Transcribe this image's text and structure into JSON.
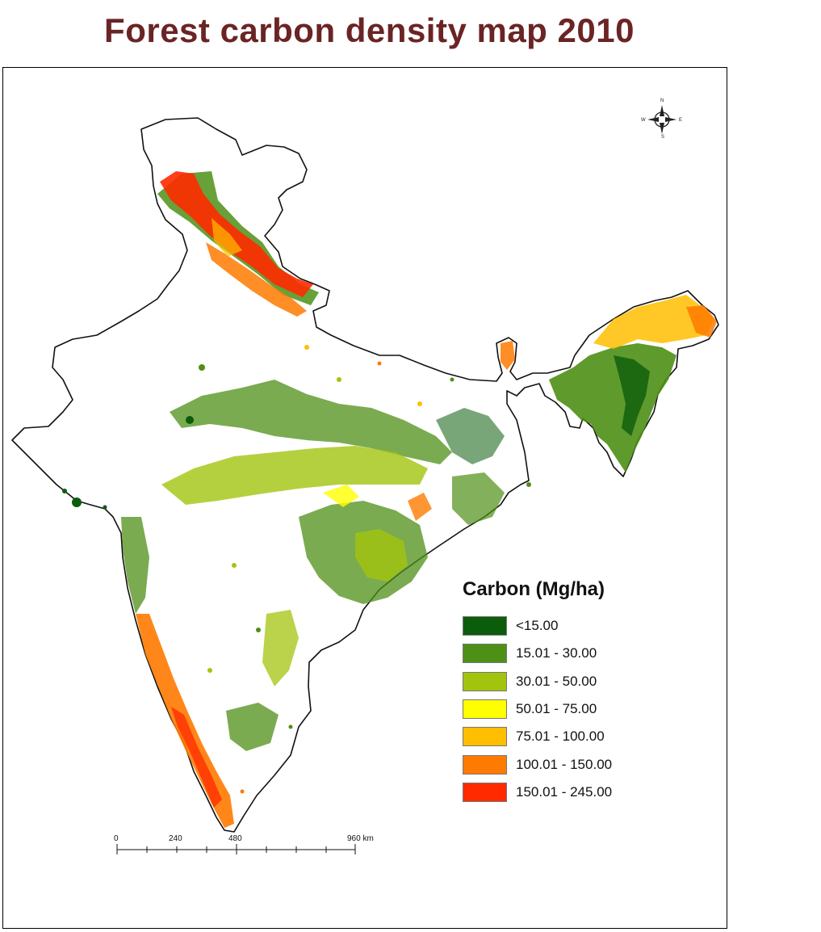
{
  "title": "Forest carbon density map 2010",
  "legend": {
    "title": "Carbon (Mg/ha)",
    "items": [
      {
        "label": "<15.00",
        "color": "#0b5d0b"
      },
      {
        "label": "15.01 - 30.00",
        "color": "#4e8f16"
      },
      {
        "label": "30.01 - 50.00",
        "color": "#a3c40e"
      },
      {
        "label": "50.01 - 75.00",
        "color": "#ffff00"
      },
      {
        "label": "75.01 - 100.00",
        "color": "#ffbe00"
      },
      {
        "label": "100.01 - 150.00",
        "color": "#ff7a00"
      },
      {
        "label": "150.01 - 245.00",
        "color": "#ff2a00"
      }
    ]
  },
  "scale_bar": {
    "labels": [
      "0",
      "240",
      "480",
      "960 km"
    ]
  },
  "north_arrow": {
    "n": "N",
    "s": "S",
    "e": "E",
    "w": "W"
  }
}
